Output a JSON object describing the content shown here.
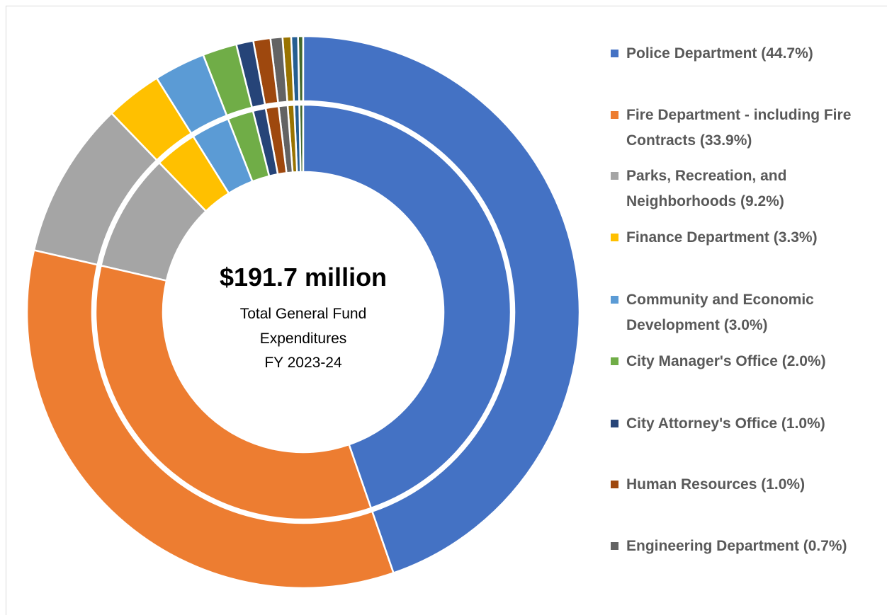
{
  "chart_data": {
    "type": "doughnut",
    "center_title": "$191.7 million",
    "center_subtitle": [
      "Total General Fund",
      "Expenditures",
      "FY 2023-24"
    ],
    "categories": [
      "Police Department (44.7%)",
      "Fire Department - including Fire Contracts (33.9%)",
      "Parks, Recreation, and Neighborhoods (9.2%)",
      "Finance Department (3.3%)",
      "Community and Economic Development (3.0%)",
      "City Manager's Office (2.0%)",
      "City Attorney's Office (1.0%)",
      "Human Resources (1.0%)",
      "Engineering Department (0.7%)",
      null,
      null,
      null
    ],
    "values": [
      44.7,
      33.9,
      9.2,
      3.3,
      3.0,
      2.0,
      1.0,
      1.0,
      0.7,
      0.5,
      0.4,
      0.3
    ],
    "colors": [
      "#4472c4",
      "#ed7d31",
      "#a5a5a5",
      "#ffc000",
      "#5b9bd5",
      "#70ad47",
      "#264478",
      "#9e480e",
      "#636363",
      "#997300",
      "#255e91",
      "#43682b"
    ],
    "rings": 2
  }
}
